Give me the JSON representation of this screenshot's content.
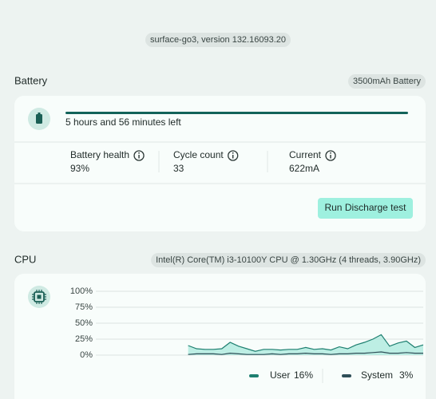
{
  "header": {
    "device": "surface-go3, version 132.16093.20"
  },
  "battery": {
    "title": "Battery",
    "capacity": "3500mAh Battery",
    "time_left": "5 hours and 56 minutes left",
    "metrics": [
      {
        "label": "Battery health",
        "value": "93%"
      },
      {
        "label": "Cycle count",
        "value": "33"
      },
      {
        "label": "Current",
        "value": "622mA"
      }
    ],
    "button": "Run Discharge test"
  },
  "cpu": {
    "title": "CPU",
    "model": "Intel(R) Core(TM) i3-10100Y CPU @ 1.30GHz (4 threads, 3.90GHz)"
  },
  "chart_data": {
    "type": "area",
    "ylim": [
      0,
      100
    ],
    "yticks": [
      {
        "value": 0,
        "label": "0%"
      },
      {
        "value": 25,
        "label": "25%"
      },
      {
        "value": 50,
        "label": "50%"
      },
      {
        "value": 75,
        "label": "75%"
      },
      {
        "value": 100,
        "label": "100%"
      }
    ],
    "grid": true,
    "series": [
      {
        "name": "User",
        "color": "#1e7f70",
        "current": "16%",
        "values": [
          null,
          null,
          null,
          null,
          null,
          null,
          null,
          null,
          null,
          null,
          null,
          15,
          10,
          9,
          9,
          10,
          20,
          14,
          10,
          6,
          9,
          9,
          8,
          9,
          9,
          12,
          9,
          10,
          8,
          13,
          10,
          16,
          20,
          25,
          32,
          14,
          19,
          22,
          12,
          16
        ]
      },
      {
        "name": "System",
        "color": "#2f4f58",
        "current": "3%",
        "values": [
          null,
          null,
          null,
          null,
          null,
          null,
          null,
          null,
          null,
          null,
          null,
          1,
          2,
          2,
          2,
          1,
          3,
          2,
          1,
          1,
          1,
          2,
          1,
          2,
          2,
          3,
          2,
          2,
          1,
          2,
          2,
          3,
          3,
          4,
          5,
          3,
          3,
          4,
          3,
          3
        ]
      }
    ]
  }
}
